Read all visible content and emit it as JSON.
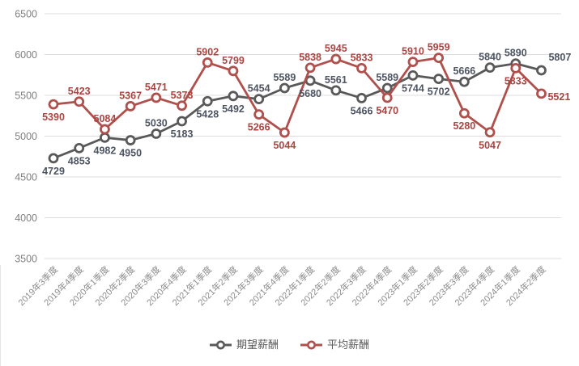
{
  "chart_data": {
    "type": "line",
    "title": "",
    "xlabel": "",
    "ylabel": "",
    "categories": [
      "2019年3季度",
      "2019年4季度",
      "2020年1季度",
      "2020年2季度",
      "2020年3季度",
      "2020年4季度",
      "2021年1季度",
      "2021年2季度",
      "2021年3季度",
      "2021年4季度",
      "2022年1季度",
      "2022年2季度",
      "2022年3季度",
      "2022年4季度",
      "2023年1季度",
      "2023年2季度",
      "2023年3季度",
      "2023年4季度",
      "2024年1季度",
      "2024年2季度"
    ],
    "series": [
      {
        "name": "期望薪酬",
        "color": "#595959",
        "label_color": "#4d5462",
        "values": [
          4729,
          4853,
          4982,
          4950,
          5030,
          5183,
          5428,
          5492,
          5454,
          5589,
          5680,
          5561,
          5466,
          5589,
          5744,
          5702,
          5666,
          5840,
          5890,
          5807
        ],
        "label_pos": [
          "below",
          "below",
          "below",
          "below",
          "above",
          "below",
          "below",
          "below",
          "above",
          "above",
          "below",
          "above",
          "below",
          "above",
          "below",
          "below",
          "above",
          "above",
          "above",
          "right-above"
        ]
      },
      {
        "name": "平均薪酬",
        "color": "#b0504c",
        "label_color": "#ab4542",
        "values": [
          5390,
          5423,
          5084,
          5367,
          5471,
          5373,
          5902,
          5799,
          5266,
          5044,
          5838,
          5945,
          5833,
          5470,
          5910,
          5959,
          5280,
          5047,
          5833,
          5521
        ],
        "label_pos": [
          "below",
          "above",
          "above",
          "above",
          "above",
          "above",
          "above",
          "above",
          "below",
          "below",
          "above",
          "above",
          "above",
          "below",
          "above",
          "above",
          "below",
          "below",
          "below",
          "right"
        ]
      }
    ],
    "ylim": [
      3500,
      6500
    ],
    "ytick_step": 500,
    "yticks": [
      6500,
      6000,
      5500,
      5000,
      4500,
      4000,
      3500
    ],
    "grid": "horizontal-only",
    "legend_position": "bottom",
    "marker": "open-circle"
  },
  "legend": {
    "items": [
      {
        "label": "期望薪酬",
        "color": "#595959"
      },
      {
        "label": "平均薪酬",
        "color": "#b0504c"
      }
    ]
  },
  "colors": {
    "background": "#ffffff",
    "gridline": "#dcdcdc",
    "xtick_text": "#8c8c8c",
    "ytick_text": "#7f7f7f",
    "legend_text": "#595959"
  }
}
